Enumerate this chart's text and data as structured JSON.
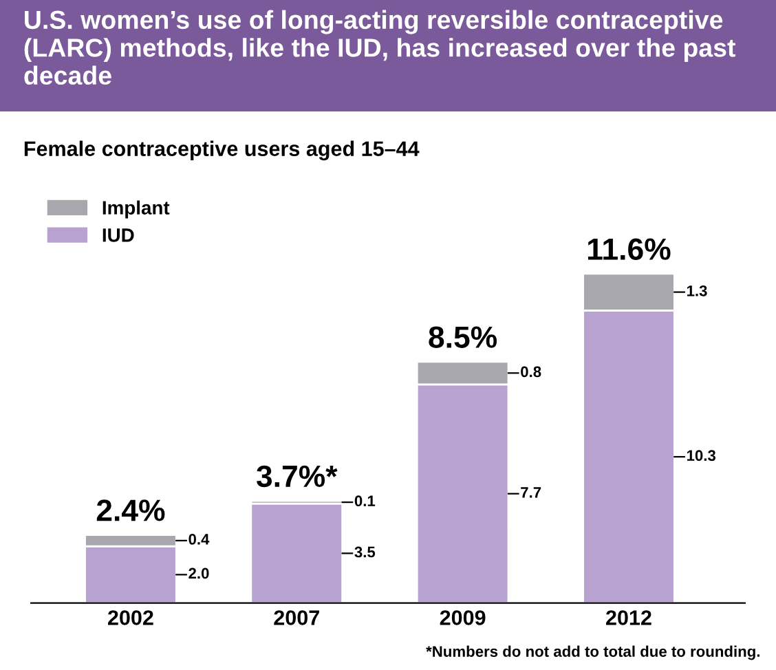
{
  "chart_data": {
    "type": "bar",
    "title": "U.S. women’s use of long-acting reversible contraceptive (LARC) methods, like the IUD, has increased over the past decade",
    "subtitle": "Female contraceptive users aged 15–44",
    "categories": [
      "2002",
      "2007",
      "2009",
      "2012"
    ],
    "stacked": true,
    "series": [
      {
        "name": "IUD",
        "color": "#b8a2cf",
        "values": [
          2.0,
          3.5,
          7.7,
          10.3
        ],
        "value_labels": [
          "2.0",
          "3.5",
          "7.7",
          "10.3"
        ]
      },
      {
        "name": "Implant",
        "color": "#a7a7ad",
        "values": [
          0.4,
          0.1,
          0.8,
          1.3
        ],
        "value_labels": [
          "0.4",
          "0.1",
          "0.8",
          "1.3"
        ]
      }
    ],
    "totals": [
      "2.4%",
      "3.7%*",
      "8.5%",
      "11.6%"
    ],
    "legend": "top left",
    "grid": false,
    "annotations": [
      "*Numbers do not add to total due to rounding."
    ]
  }
}
